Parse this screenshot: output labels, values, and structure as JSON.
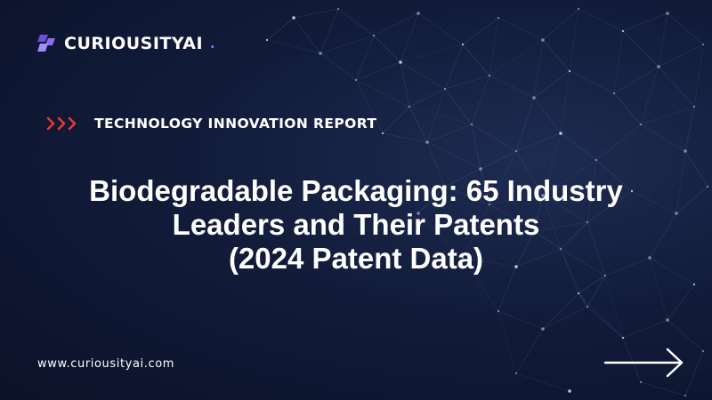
{
  "brand": {
    "name": "CURIOUSITYAI",
    "dot": ".",
    "icon": "layered-cube-logo-icon",
    "accent_color": "#8b6cf0"
  },
  "eyebrow": {
    "icon": "triple-chevron-right-icon",
    "color": "#e53935",
    "text": "TECHNOLOGY INNOVATION REPORT"
  },
  "title": {
    "lines": [
      "Biodegradable Packaging: 65 Industry",
      "Leaders and Their Patents",
      "(2024 Patent Data)"
    ]
  },
  "footer": {
    "website": "www.curiousityai.com",
    "arrow_icon": "arrow-right-icon"
  },
  "colors": {
    "background": "#121c3a",
    "text": "#ffffff"
  }
}
